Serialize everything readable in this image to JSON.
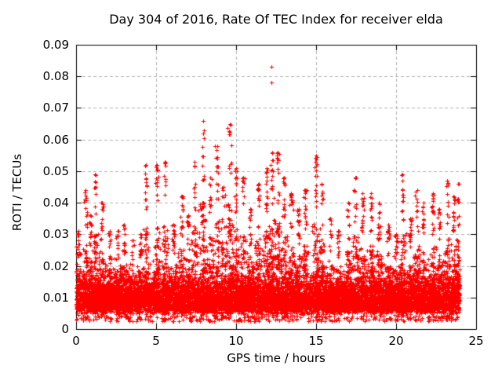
{
  "chart_data": {
    "type": "scatter",
    "title": "Day 304 of 2016, Rate Of TEC Index for receiver elda",
    "xlabel": "GPS time / hours",
    "ylabel": "ROTI / TECUs",
    "series_name": "ROTI",
    "xlim": [
      0,
      25
    ],
    "ylim": [
      0,
      0.09
    ],
    "xticks": {
      "values": [
        0,
        5,
        10,
        15,
        20,
        25
      ],
      "labels": [
        "0",
        "5",
        "10",
        "15",
        "20",
        "25"
      ]
    },
    "yticks": {
      "values": [
        0,
        0.01,
        0.02,
        0.03,
        0.04,
        0.05,
        0.06,
        0.07,
        0.08,
        0.09
      ],
      "labels": [
        "0",
        "0.01",
        "0.02",
        "0.03",
        "0.04",
        "0.05",
        "0.06",
        "0.07",
        "0.08",
        "0.09"
      ]
    },
    "grid": {
      "show": true,
      "color": "#b4b4b4",
      "dash": [
        4,
        3
      ],
      "x_gridlines": [
        5,
        10,
        15,
        20
      ],
      "y_gridlines": [
        0.01,
        0.02,
        0.03,
        0.04,
        0.05,
        0.06,
        0.07,
        0.08
      ]
    },
    "axis_color": "#000000",
    "background": "#ffffff",
    "marker": {
      "shape": "plus",
      "color": "#ff0000",
      "size": 5,
      "stroke_width": 1
    },
    "legend": {
      "show": false
    },
    "data_model": {
      "description": "Dense red noise band 0.002-0.026 TECU across 0-24 h with vertical spike clusters; spikes listed as [hour, peak ROTI] read from the plot",
      "time_span": [
        0,
        23.97
      ],
      "baseline_band": {
        "core_range": [
          0.004,
          0.016
        ],
        "mid_range": [
          0.009,
          0.026
        ],
        "floor": 0.002,
        "n_core": 7000,
        "n_mid": 2600,
        "n_floor": 350
      },
      "spikes": [
        [
          0.15,
          0.031
        ],
        [
          0.6,
          0.044
        ],
        [
          0.9,
          0.036
        ],
        [
          1.2,
          0.049
        ],
        [
          1.6,
          0.04
        ],
        [
          2.1,
          0.031
        ],
        [
          2.6,
          0.031
        ],
        [
          3.0,
          0.033
        ],
        [
          3.5,
          0.028
        ],
        [
          4.0,
          0.03
        ],
        [
          4.35,
          0.052
        ],
        [
          5.05,
          0.052
        ],
        [
          5.55,
          0.053
        ],
        [
          6.1,
          0.033
        ],
        [
          6.6,
          0.042
        ],
        [
          7.0,
          0.036
        ],
        [
          7.4,
          0.053
        ],
        [
          7.95,
          0.066
        ],
        [
          8.4,
          0.048
        ],
        [
          8.8,
          0.058
        ],
        [
          9.2,
          0.045
        ],
        [
          9.6,
          0.065
        ],
        [
          10.0,
          0.051
        ],
        [
          10.45,
          0.048
        ],
        [
          10.9,
          0.038
        ],
        [
          11.4,
          0.046
        ],
        [
          11.9,
          0.051
        ],
        [
          12.25,
          0.056
        ],
        [
          12.6,
          0.056
        ],
        [
          13.0,
          0.048
        ],
        [
          13.45,
          0.043
        ],
        [
          13.9,
          0.038
        ],
        [
          14.3,
          0.044
        ],
        [
          15.0,
          0.055
        ],
        [
          15.35,
          0.046
        ],
        [
          15.9,
          0.035
        ],
        [
          16.4,
          0.031
        ],
        [
          17.0,
          0.04
        ],
        [
          17.45,
          0.048
        ],
        [
          17.9,
          0.043
        ],
        [
          18.45,
          0.043
        ],
        [
          18.9,
          0.04
        ],
        [
          19.5,
          0.033
        ],
        [
          20.0,
          0.03
        ],
        [
          20.4,
          0.049
        ],
        [
          20.9,
          0.035
        ],
        [
          21.3,
          0.044
        ],
        [
          21.7,
          0.04
        ],
        [
          22.3,
          0.043
        ],
        [
          22.7,
          0.038
        ],
        [
          23.2,
          0.047
        ],
        [
          23.6,
          0.042
        ],
        [
          23.9,
          0.046
        ]
      ],
      "isolated_high_points": [
        [
          12.2,
          0.083
        ],
        [
          12.2,
          0.078
        ]
      ]
    }
  }
}
